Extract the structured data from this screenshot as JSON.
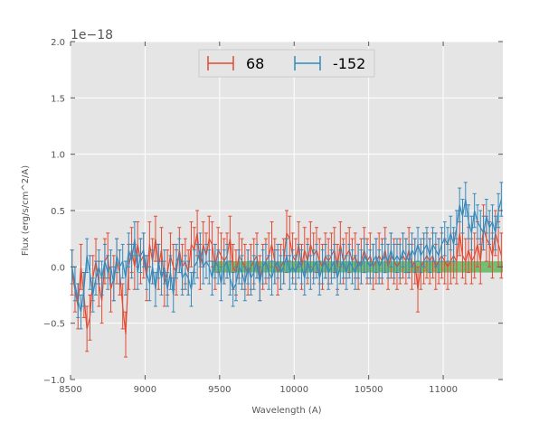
{
  "chart_data": {
    "type": "line",
    "xlabel": "Wavelength (A)",
    "ylabel": "Flux (erg/s/cm^2/A)",
    "y_offset_label": "1e−18",
    "xlim": [
      8500,
      11400
    ],
    "ylim": [
      -1.0,
      2.0
    ],
    "x_ticks": [
      8500,
      9000,
      9500,
      10000,
      10500,
      11000
    ],
    "x_tick_labels": [
      "8500",
      "9000",
      "9500",
      "10000",
      "10500",
      "11000"
    ],
    "y_ticks": [
      -1.0,
      -0.5,
      0.0,
      0.5,
      1.0,
      1.5,
      2.0
    ],
    "y_tick_labels": [
      "−1.0",
      "−0.5",
      "0.0",
      "0.5",
      "1.0",
      "1.5",
      "2.0"
    ],
    "grid": true,
    "legend_position": "top-center",
    "band": {
      "x_start": 9450,
      "x_end": 11400,
      "y_low": -0.05,
      "y_high": 0.05,
      "color": "#4daf4a"
    },
    "series": [
      {
        "name": "68",
        "color": "#e24a33",
        "x": [
          8510,
          8530,
          8550,
          8570,
          8590,
          8610,
          8630,
          8650,
          8670,
          8690,
          8710,
          8730,
          8750,
          8770,
          8790,
          8810,
          8830,
          8850,
          8870,
          8890,
          8910,
          8930,
          8950,
          8970,
          8990,
          9010,
          9030,
          9050,
          9070,
          9090,
          9110,
          9130,
          9150,
          9170,
          9190,
          9210,
          9230,
          9250,
          9270,
          9290,
          9310,
          9330,
          9350,
          9370,
          9390,
          9410,
          9430,
          9450,
          9470,
          9490,
          9510,
          9530,
          9550,
          9570,
          9590,
          9610,
          9630,
          9650,
          9670,
          9690,
          9710,
          9730,
          9750,
          9770,
          9790,
          9810,
          9830,
          9850,
          9870,
          9890,
          9910,
          9930,
          9950,
          9970,
          9990,
          10010,
          10030,
          10050,
          10070,
          10090,
          10110,
          10130,
          10150,
          10170,
          10190,
          10210,
          10230,
          10250,
          10270,
          10290,
          10310,
          10330,
          10350,
          10370,
          10390,
          10410,
          10430,
          10450,
          10470,
          10490,
          10510,
          10530,
          10550,
          10570,
          10590,
          10610,
          10630,
          10650,
          10670,
          10690,
          10710,
          10730,
          10750,
          10770,
          10790,
          10810,
          10830,
          10850,
          10870,
          10890,
          10910,
          10930,
          10950,
          10970,
          10990,
          11010,
          11030,
          11050,
          11070,
          11090,
          11110,
          11130,
          11150,
          11170,
          11190,
          11210,
          11230,
          11250,
          11270,
          11290,
          11310,
          11330,
          11350,
          11370,
          11390
        ],
        "y": [
          -0.05,
          -0.2,
          -0.35,
          0.0,
          -0.25,
          -0.55,
          -0.45,
          -0.1,
          0.05,
          -0.15,
          -0.3,
          0.05,
          0.1,
          -0.2,
          -0.1,
          0.05,
          -0.05,
          -0.35,
          -0.6,
          0.0,
          0.15,
          0.0,
          0.2,
          0.05,
          0.1,
          -0.1,
          0.2,
          0.05,
          0.25,
          0.0,
          0.15,
          -0.15,
          -0.05,
          0.1,
          0.0,
          -0.05,
          0.15,
          0.0,
          0.05,
          -0.05,
          0.2,
          0.15,
          0.3,
          0.0,
          0.2,
          0.1,
          0.25,
          0.2,
          0.0,
          0.15,
          0.1,
          0.05,
          0.1,
          0.25,
          0.0,
          -0.05,
          0.1,
          0.05,
          0.0,
          -0.05,
          0.0,
          0.05,
          0.1,
          -0.1,
          0.0,
          0.05,
          0.1,
          0.2,
          0.05,
          -0.05,
          0.0,
          0.05,
          0.3,
          0.25,
          0.1,
          0.05,
          0.2,
          0.0,
          0.15,
          0.05,
          0.2,
          0.1,
          0.15,
          0.05,
          0.0,
          0.1,
          0.05,
          0.1,
          0.15,
          0.0,
          0.2,
          0.05,
          0.1,
          0.15,
          0.05,
          0.1,
          0.0,
          0.05,
          0.15,
          0.05,
          0.1,
          0.0,
          0.05,
          0.1,
          0.05,
          0.15,
          0.0,
          0.1,
          0.05,
          0.0,
          0.05,
          0.1,
          0.05,
          0.15,
          0.0,
          0.05,
          -0.2,
          0.0,
          0.05,
          0.1,
          0.05,
          0.1,
          0.0,
          0.05,
          0.1,
          0.05,
          0.0,
          0.05,
          0.1,
          0.05,
          0.3,
          0.1,
          0.05,
          0.15,
          0.05,
          0.1,
          0.2,
          0.05,
          0.35,
          0.25,
          0.2,
          0.1,
          0.3,
          0.2,
          0.1
        ],
        "err": 0.2
      },
      {
        "name": "-152",
        "color": "#348abd",
        "x": [
          8510,
          8530,
          8550,
          8570,
          8590,
          8610,
          8630,
          8650,
          8670,
          8690,
          8710,
          8730,
          8750,
          8770,
          8790,
          8810,
          8830,
          8850,
          8870,
          8890,
          8910,
          8930,
          8950,
          8970,
          8990,
          9010,
          9030,
          9050,
          9070,
          9090,
          9110,
          9130,
          9150,
          9170,
          9190,
          9210,
          9230,
          9250,
          9270,
          9290,
          9310,
          9330,
          9350,
          9370,
          9390,
          9410,
          9430,
          9450,
          9470,
          9490,
          9510,
          9530,
          9550,
          9570,
          9590,
          9610,
          9630,
          9650,
          9670,
          9690,
          9710,
          9730,
          9750,
          9770,
          9790,
          9810,
          9830,
          9850,
          9870,
          9890,
          9910,
          9930,
          9950,
          9970,
          9990,
          10010,
          10030,
          10050,
          10070,
          10090,
          10110,
          10130,
          10150,
          10170,
          10190,
          10210,
          10230,
          10250,
          10270,
          10290,
          10310,
          10330,
          10350,
          10370,
          10390,
          10410,
          10430,
          10450,
          10470,
          10490,
          10510,
          10530,
          10550,
          10570,
          10590,
          10610,
          10630,
          10650,
          10670,
          10690,
          10710,
          10730,
          10750,
          10770,
          10790,
          10810,
          10830,
          10850,
          10870,
          10890,
          10910,
          10930,
          10950,
          10970,
          10990,
          11010,
          11030,
          11050,
          11070,
          11090,
          11110,
          11130,
          11150,
          11170,
          11190,
          11210,
          11230,
          11250,
          11270,
          11290,
          11310,
          11330,
          11350,
          11370,
          11390
        ],
        "y": [
          0.0,
          -0.15,
          -0.3,
          -0.4,
          -0.2,
          0.1,
          -0.05,
          -0.25,
          -0.1,
          0.0,
          -0.1,
          0.05,
          -0.05,
          0.0,
          -0.15,
          0.1,
          0.0,
          0.05,
          -0.1,
          0.15,
          0.05,
          0.25,
          -0.05,
          0.1,
          0.15,
          -0.05,
          -0.15,
          0.0,
          -0.2,
          0.05,
          -0.1,
          0.0,
          -0.2,
          -0.05,
          -0.25,
          0.05,
          0.1,
          -0.1,
          -0.05,
          -0.1,
          -0.2,
          0.0,
          0.05,
          0.15,
          0.0,
          0.05,
          0.0,
          -0.1,
          0.05,
          0.0,
          -0.15,
          0.0,
          0.05,
          -0.1,
          -0.2,
          -0.15,
          0.0,
          -0.05,
          -0.15,
          0.0,
          -0.1,
          -0.05,
          0.05,
          -0.15,
          0.0,
          0.05,
          -0.05,
          -0.1,
          0.0,
          0.05,
          -0.05,
          0.0,
          0.1,
          -0.05,
          0.0,
          -0.05,
          0.05,
          0.0,
          -0.1,
          0.05,
          -0.05,
          0.0,
          0.05,
          -0.1,
          0.0,
          0.05,
          -0.05,
          0.0,
          0.05,
          -0.1,
          0.0,
          0.05,
          -0.05,
          0.05,
          0.0,
          -0.05,
          0.05,
          0.0,
          0.1,
          0.05,
          0.0,
          0.05,
          0.1,
          0.0,
          0.05,
          0.1,
          0.05,
          0.15,
          0.05,
          0.1,
          0.05,
          0.15,
          0.1,
          0.05,
          0.15,
          0.1,
          0.2,
          0.1,
          0.15,
          0.2,
          0.1,
          0.2,
          0.15,
          0.1,
          0.2,
          0.25,
          0.2,
          0.3,
          0.2,
          0.35,
          0.55,
          0.45,
          0.6,
          0.4,
          0.3,
          0.5,
          0.4,
          0.35,
          0.3,
          0.45,
          0.35,
          0.4,
          0.3,
          0.5,
          0.6
        ],
        "err": 0.15
      }
    ]
  }
}
